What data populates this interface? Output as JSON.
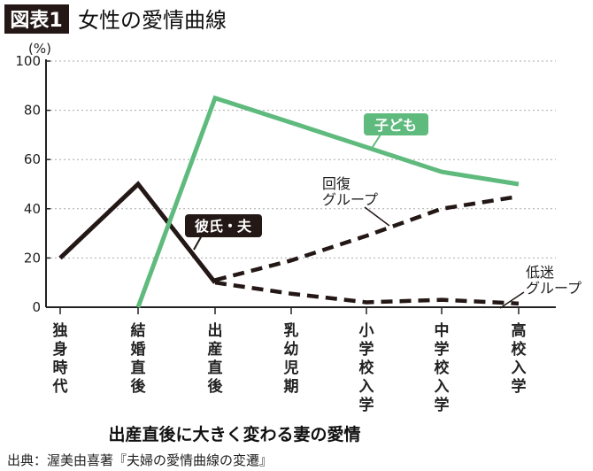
{
  "header": {
    "badge": "図表1",
    "title": "女性の愛情曲線"
  },
  "chart_data": {
    "type": "line",
    "title": "女性の愛情曲線",
    "ylabel": "(%)",
    "ylim": [
      0,
      100
    ],
    "yticks": [
      "0",
      "20",
      "40",
      "60",
      "80",
      "100"
    ],
    "grid": "horizontal dotted",
    "categories": [
      "独身時代",
      "結婚直後",
      "出産直後",
      "乳幼児期",
      "小学校入学",
      "中学校入学",
      "高校入学"
    ],
    "series": [
      {
        "name": "彼氏・夫",
        "style": "solid",
        "color": "#231815",
        "values": [
          20,
          50,
          10,
          null,
          null,
          null,
          null
        ]
      },
      {
        "name": "子ども",
        "style": "solid",
        "color": "#5fba7d",
        "values": [
          null,
          0,
          85,
          75,
          65,
          55,
          50
        ]
      },
      {
        "name": "回復グループ",
        "style": "dashed",
        "color": "#231815",
        "values": [
          null,
          null,
          11,
          19,
          29,
          40,
          45
        ]
      },
      {
        "name": "低迷グループ",
        "style": "dashed",
        "color": "#231815",
        "values": [
          null,
          null,
          10,
          5.5,
          2,
          3,
          1.5
        ]
      }
    ],
    "caption": "出産直後に大きく変わる妻の愛情"
  },
  "source": "出典：渥美由喜著『夫婦の愛情曲線の変遷』"
}
